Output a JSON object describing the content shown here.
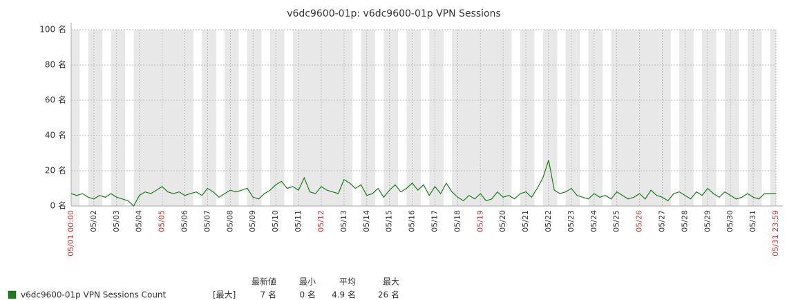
{
  "chart_data": {
    "type": "line",
    "title": "v6dc9600-01p: v6dc9600-01p VPN Sessions",
    "working_hours": [
      9,
      18
    ],
    "weekend_days": [
      "05/04",
      "05/05",
      "05/11",
      "05/12",
      "05/18",
      "05/19",
      "05/25",
      "05/26"
    ],
    "nonworking_color": "#e8e8e8",
    "grid": true,
    "xlim": [
      "05/01 00:00",
      "05/31 23:59"
    ],
    "xticks": [
      {
        "value": "05/01 00:00",
        "label": "05/01 00:00",
        "color": "#e03030"
      },
      {
        "value": "05/02 00:00",
        "label": "05/02"
      },
      {
        "value": "05/03 00:00",
        "label": "05/03"
      },
      {
        "value": "05/04 00:00",
        "label": "05/04"
      },
      {
        "value": "05/05 00:00",
        "label": "05/05",
        "color": "#e03030"
      },
      {
        "value": "05/06 00:00",
        "label": "05/06"
      },
      {
        "value": "05/07 00:00",
        "label": "05/07"
      },
      {
        "value": "05/08 00:00",
        "label": "05/08"
      },
      {
        "value": "05/09 00:00",
        "label": "05/09"
      },
      {
        "value": "05/10 00:00",
        "label": "05/10"
      },
      {
        "value": "05/11 00:00",
        "label": "05/11"
      },
      {
        "value": "05/12 00:00",
        "label": "05/12",
        "color": "#e03030"
      },
      {
        "value": "05/13 00:00",
        "label": "05/13"
      },
      {
        "value": "05/14 00:00",
        "label": "05/14"
      },
      {
        "value": "05/15 00:00",
        "label": "05/15"
      },
      {
        "value": "05/16 00:00",
        "label": "05/16"
      },
      {
        "value": "05/17 00:00",
        "label": "05/17"
      },
      {
        "value": "05/18 00:00",
        "label": "05/18"
      },
      {
        "value": "05/19 00:00",
        "label": "05/19",
        "color": "#e03030"
      },
      {
        "value": "05/20 00:00",
        "label": "05/20"
      },
      {
        "value": "05/21 00:00",
        "label": "05/21"
      },
      {
        "value": "05/22 00:00",
        "label": "05/22"
      },
      {
        "value": "05/23 00:00",
        "label": "05/23"
      },
      {
        "value": "05/24 00:00",
        "label": "05/24"
      },
      {
        "value": "05/25 00:00",
        "label": "05/25"
      },
      {
        "value": "05/26 00:00",
        "label": "05/26",
        "color": "#e03030"
      },
      {
        "value": "05/27 00:00",
        "label": "05/27"
      },
      {
        "value": "05/28 00:00",
        "label": "05/28"
      },
      {
        "value": "05/29 00:00",
        "label": "05/29"
      },
      {
        "value": "05/30 00:00",
        "label": "05/30"
      },
      {
        "value": "05/31 00:00",
        "label": "05/31"
      },
      {
        "value": "05/31 23:59",
        "label": "05/31 23:59",
        "color": "#e03030"
      }
    ],
    "ylim": [
      0,
      100
    ],
    "yticks": [
      {
        "value": 0,
        "label": "0 名"
      },
      {
        "value": 20,
        "label": "20 名"
      },
      {
        "value": 40,
        "label": "40 名"
      },
      {
        "value": 60,
        "label": "60 名"
      },
      {
        "value": 80,
        "label": "80 名"
      },
      {
        "value": 100,
        "label": "100 名"
      }
    ],
    "x": [
      "05/01 00:00",
      "05/01 06:00",
      "05/01 12:00",
      "05/01 18:00",
      "05/02 00:00",
      "05/02 06:00",
      "05/02 12:00",
      "05/02 18:00",
      "05/03 00:00",
      "05/03 06:00",
      "05/03 12:00",
      "05/03 18:00",
      "05/04 00:00",
      "05/04 06:00",
      "05/04 12:00",
      "05/04 18:00",
      "05/05 00:00",
      "05/05 06:00",
      "05/05 12:00",
      "05/05 18:00",
      "05/06 00:00",
      "05/06 06:00",
      "05/06 12:00",
      "05/06 18:00",
      "05/07 00:00",
      "05/07 06:00",
      "05/07 12:00",
      "05/07 18:00",
      "05/08 00:00",
      "05/08 06:00",
      "05/08 12:00",
      "05/08 18:00",
      "05/09 00:00",
      "05/09 06:00",
      "05/09 12:00",
      "05/09 18:00",
      "05/10 00:00",
      "05/10 06:00",
      "05/10 12:00",
      "05/10 18:00",
      "05/11 00:00",
      "05/11 06:00",
      "05/11 12:00",
      "05/11 18:00",
      "05/12 00:00",
      "05/12 06:00",
      "05/12 12:00",
      "05/12 18:00",
      "05/13 00:00",
      "05/13 06:00",
      "05/13 12:00",
      "05/13 18:00",
      "05/14 00:00",
      "05/14 06:00",
      "05/14 12:00",
      "05/14 18:00",
      "05/15 00:00",
      "05/15 06:00",
      "05/15 12:00",
      "05/15 18:00",
      "05/16 00:00",
      "05/16 06:00",
      "05/16 12:00",
      "05/16 18:00",
      "05/17 00:00",
      "05/17 06:00",
      "05/17 12:00",
      "05/17 18:00",
      "05/18 00:00",
      "05/18 06:00",
      "05/18 12:00",
      "05/18 18:00",
      "05/19 00:00",
      "05/19 06:00",
      "05/19 12:00",
      "05/19 18:00",
      "05/20 00:00",
      "05/20 06:00",
      "05/20 12:00",
      "05/20 18:00",
      "05/21 00:00",
      "05/21 06:00",
      "05/21 12:00",
      "05/21 18:00",
      "05/22 00:00",
      "05/22 06:00",
      "05/22 12:00",
      "05/22 18:00",
      "05/23 00:00",
      "05/23 06:00",
      "05/23 12:00",
      "05/23 18:00",
      "05/24 00:00",
      "05/24 06:00",
      "05/24 12:00",
      "05/24 18:00",
      "05/25 00:00",
      "05/25 06:00",
      "05/25 12:00",
      "05/25 18:00",
      "05/26 00:00",
      "05/26 06:00",
      "05/26 12:00",
      "05/26 18:00",
      "05/27 00:00",
      "05/27 06:00",
      "05/27 12:00",
      "05/27 18:00",
      "05/28 00:00",
      "05/28 06:00",
      "05/28 12:00",
      "05/28 18:00",
      "05/29 00:00",
      "05/29 06:00",
      "05/29 12:00",
      "05/29 18:00",
      "05/30 00:00",
      "05/30 06:00",
      "05/30 12:00",
      "05/30 18:00",
      "05/31 00:00",
      "05/31 06:00",
      "05/31 12:00",
      "05/31 18:00",
      "05/31 23:59"
    ],
    "series": [
      {
        "name": "v6dc9600-01p VPN Sessions Count",
        "color": "#1a7c1a",
        "values": [
          7,
          6,
          7,
          5,
          4,
          6,
          5,
          7,
          5,
          4,
          3,
          0,
          6,
          8,
          7,
          9,
          11,
          8,
          7,
          8,
          6,
          7,
          8,
          6,
          10,
          8,
          5,
          7,
          9,
          8,
          9,
          10,
          5,
          4,
          7,
          9,
          12,
          14,
          10,
          11,
          9,
          16,
          8,
          7,
          11,
          9,
          8,
          7,
          15,
          13,
          10,
          12,
          6,
          7,
          10,
          5,
          9,
          12,
          8,
          10,
          13,
          9,
          12,
          6,
          11,
          7,
          13,
          8,
          5,
          3,
          6,
          4,
          7,
          3,
          4,
          8,
          5,
          6,
          4,
          7,
          8,
          5,
          10,
          16,
          26,
          9,
          7,
          8,
          10,
          6,
          5,
          4,
          7,
          5,
          6,
          4,
          8,
          6,
          4,
          5,
          7,
          4,
          9,
          6,
          5,
          3,
          7,
          8,
          6,
          4,
          8,
          6,
          10,
          7,
          5,
          8,
          6,
          4,
          5,
          7,
          5,
          4,
          7,
          7,
          7
        ]
      }
    ],
    "legend": {
      "function": "[最大]",
      "headers": [
        "最新値",
        "最小",
        "平均",
        "最大"
      ],
      "values": [
        {
          "value": 7,
          "label": "7 名"
        },
        {
          "value": 0,
          "label": "0 名"
        },
        {
          "value": 4.9,
          "label": "4.9 名"
        },
        {
          "value": 26,
          "label": "26 名"
        }
      ]
    }
  }
}
